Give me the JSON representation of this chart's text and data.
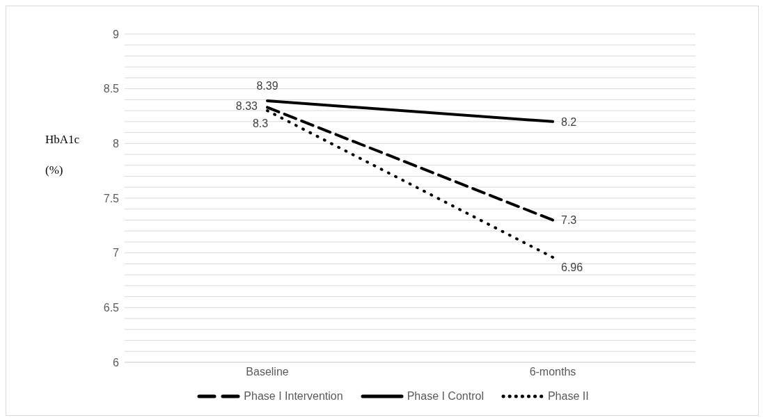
{
  "chart_data": {
    "type": "line",
    "ylabel": "HbA1c (%)",
    "categories": [
      "Baseline",
      "6-months"
    ],
    "series": [
      {
        "name": "Phase I Intervention",
        "color": "#000000",
        "values": [
          8.33,
          7.3
        ],
        "line_style": "dashed"
      },
      {
        "name": "Phase I Control",
        "color": "#000000",
        "values": [
          8.39,
          8.2
        ],
        "line_style": "solid"
      },
      {
        "name": "Phase II",
        "color": "#000000",
        "values": [
          8.3,
          6.96
        ],
        "line_style": "dotted"
      }
    ],
    "ylim": [
      6,
      9
    ],
    "yticks": [
      6,
      {
        "value": 6.1,
        "label": null
      },
      {
        "value": 6.2,
        "label": null
      },
      {
        "value": 6.3,
        "label": null
      },
      {
        "value": 6.4,
        "label": null
      },
      6.5,
      {
        "value": 6.6,
        "label": null
      },
      {
        "value": 6.7,
        "label": null
      },
      {
        "value": 6.8,
        "label": null
      },
      {
        "value": 6.9,
        "label": null
      },
      7,
      {
        "value": 7.1,
        "label": null
      },
      {
        "value": 7.2,
        "label": null
      },
      {
        "value": 7.3,
        "label": null
      },
      {
        "value": 7.4,
        "label": null
      },
      7.5,
      {
        "value": 7.6,
        "label": null
      },
      {
        "value": 7.7,
        "label": null
      },
      {
        "value": 7.8,
        "label": null
      },
      {
        "value": 7.9,
        "label": null
      },
      8,
      {
        "value": 8.1,
        "label": null
      },
      {
        "value": 8.2,
        "label": null
      },
      {
        "value": 8.3,
        "label": null
      },
      {
        "value": 8.4,
        "label": null
      },
      8.5,
      {
        "value": 8.6,
        "label": null
      },
      {
        "value": 8.7,
        "label": null
      },
      {
        "value": 8.8,
        "label": null
      },
      {
        "value": 8.9,
        "label": null
      },
      9
    ],
    "grid": "y",
    "legend": "bottom",
    "marker": "none",
    "data_labels": true
  }
}
